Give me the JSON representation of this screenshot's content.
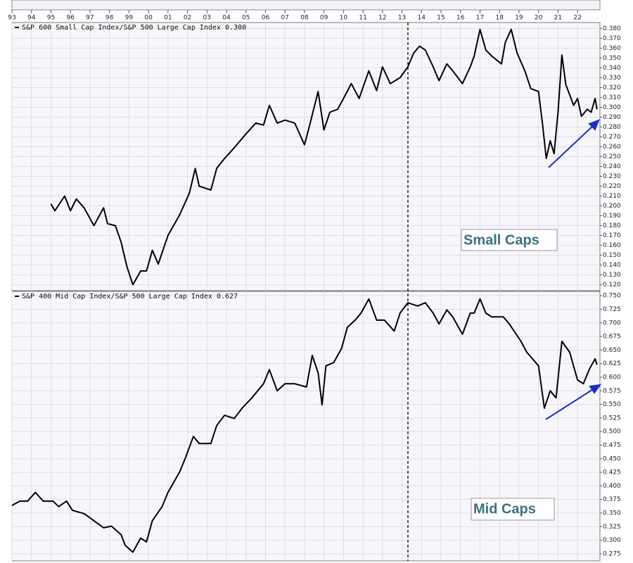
{
  "chart_data": [
    {
      "type": "line",
      "title": "S&P 600 Small Cap Index/S&P 500 Large Cap Index 0.300",
      "annotation": "Small Caps",
      "grid": true,
      "xlim": [
        1993,
        2023.15
      ],
      "xticks": [
        {
          "value": 1993,
          "label": "93"
        },
        {
          "value": 1994,
          "label": "94"
        },
        {
          "value": 1995,
          "label": "95"
        },
        {
          "value": 1996,
          "label": "96"
        },
        {
          "value": 1997,
          "label": "97"
        },
        {
          "value": 1998,
          "label": "98"
        },
        {
          "value": 1999,
          "label": "99"
        },
        {
          "value": 2000,
          "label": "00"
        },
        {
          "value": 2001,
          "label": "01"
        },
        {
          "value": 2002,
          "label": "02"
        },
        {
          "value": 2003,
          "label": "03"
        },
        {
          "value": 2004,
          "label": "04"
        },
        {
          "value": 2005,
          "label": "05"
        },
        {
          "value": 2006,
          "label": "06"
        },
        {
          "value": 2007,
          "label": "07"
        },
        {
          "value": 2008,
          "label": "08"
        },
        {
          "value": 2009,
          "label": "09"
        },
        {
          "value": 2010,
          "label": "10"
        },
        {
          "value": 2011,
          "label": "11"
        },
        {
          "value": 2012,
          "label": "12"
        },
        {
          "value": 2013,
          "label": "13"
        },
        {
          "value": 2014,
          "label": "14"
        },
        {
          "value": 2015,
          "label": "15"
        },
        {
          "value": 2016,
          "label": "16"
        },
        {
          "value": 2017,
          "label": "17"
        },
        {
          "value": 2018,
          "label": "18"
        },
        {
          "value": 2019,
          "label": "19"
        },
        {
          "value": 2020,
          "label": "20"
        },
        {
          "value": 2021,
          "label": "21"
        },
        {
          "value": 2022,
          "label": "22"
        }
      ],
      "ylim": [
        0.114,
        0.386
      ],
      "yticks": [
        {
          "value": 0.12,
          "label": "0.120"
        },
        {
          "value": 0.13,
          "label": "0.130"
        },
        {
          "value": 0.14,
          "label": "0.140"
        },
        {
          "value": 0.15,
          "label": "0.150"
        },
        {
          "value": 0.16,
          "label": "0.160"
        },
        {
          "value": 0.17,
          "label": "0.170"
        },
        {
          "value": 0.18,
          "label": "0.180"
        },
        {
          "value": 0.19,
          "label": "0.190"
        },
        {
          "value": 0.2,
          "label": "0.200"
        },
        {
          "value": 0.21,
          "label": "0.210"
        },
        {
          "value": 0.22,
          "label": "0.220"
        },
        {
          "value": 0.23,
          "label": "0.230"
        },
        {
          "value": 0.24,
          "label": "0.240"
        },
        {
          "value": 0.25,
          "label": "0.250"
        },
        {
          "value": 0.26,
          "label": "0.260"
        },
        {
          "value": 0.27,
          "label": "0.270"
        },
        {
          "value": 0.28,
          "label": "0.280"
        },
        {
          "value": 0.29,
          "label": "0.290"
        },
        {
          "value": 0.3,
          "label": "0.300"
        },
        {
          "value": 0.31,
          "label": "0.310"
        },
        {
          "value": 0.32,
          "label": "0.320"
        },
        {
          "value": 0.33,
          "label": "0.330"
        },
        {
          "value": 0.34,
          "label": "0.340"
        },
        {
          "value": 0.35,
          "label": "0.350"
        },
        {
          "value": 0.36,
          "label": "0.360"
        },
        {
          "value": 0.37,
          "label": "0.370"
        },
        {
          "value": 0.38,
          "label": "0.380"
        }
      ],
      "series": [
        {
          "color": "#000000",
          "x": [
            1995.0,
            1995.2,
            1995.7,
            1996.0,
            1996.3,
            1996.7,
            1997.2,
            1997.7,
            1997.9,
            1998.3,
            1998.6,
            1998.9,
            1999.2,
            1999.6,
            1999.9,
            2000.2,
            2000.5,
            2001.0,
            2001.6,
            2002.1,
            2002.4,
            2002.6,
            2003.2,
            2003.5,
            2003.9,
            2004.4,
            2005.0,
            2005.5,
            2005.9,
            2006.2,
            2006.6,
            2007.0,
            2007.5,
            2008.0,
            2008.2,
            2008.7,
            2009.0,
            2009.3,
            2009.7,
            2010.0,
            2010.4,
            2010.8,
            2011.3,
            2011.7,
            2012.0,
            2012.4,
            2012.9,
            2013.3,
            2013.6,
            2013.9,
            2014.2,
            2014.6,
            2014.9,
            2015.3,
            2015.6,
            2016.1,
            2016.5,
            2016.7,
            2017.0,
            2017.3,
            2017.6,
            2018.1,
            2018.3,
            2018.6,
            2018.9,
            2019.3,
            2019.6,
            2020.0,
            2020.2,
            2020.4,
            2020.6,
            2020.8,
            2021.0,
            2021.2,
            2021.4,
            2021.8,
            2022.0,
            2022.2,
            2022.5,
            2022.7,
            2022.9,
            2023.0
          ],
          "values": [
            0.202,
            0.195,
            0.21,
            0.195,
            0.207,
            0.198,
            0.18,
            0.198,
            0.182,
            0.18,
            0.163,
            0.138,
            0.12,
            0.134,
            0.134,
            0.155,
            0.141,
            0.17,
            0.191,
            0.213,
            0.238,
            0.22,
            0.216,
            0.238,
            0.248,
            0.259,
            0.273,
            0.284,
            0.282,
            0.302,
            0.284,
            0.287,
            0.284,
            0.262,
            0.277,
            0.316,
            0.277,
            0.295,
            0.298,
            0.309,
            0.324,
            0.309,
            0.337,
            0.317,
            0.341,
            0.324,
            0.33,
            0.341,
            0.355,
            0.362,
            0.358,
            0.341,
            0.327,
            0.344,
            0.337,
            0.324,
            0.341,
            0.352,
            0.379,
            0.358,
            0.352,
            0.344,
            0.366,
            0.379,
            0.355,
            0.337,
            0.319,
            0.316,
            0.284,
            0.248,
            0.266,
            0.253,
            0.295,
            0.353,
            0.323,
            0.302,
            0.309,
            0.291,
            0.298,
            0.295,
            0.309,
            0.298
          ]
        }
      ]
    },
    {
      "type": "line",
      "title": "S&P 400 Mid Cap Index/S&P 500 Large Cap Index 0.627",
      "annotation": "Mid Caps",
      "grid": true,
      "xlim": [
        1993,
        2023.15
      ],
      "ylim": [
        0.262,
        0.758
      ],
      "yticks": [
        {
          "value": 0.275,
          "label": "0.275"
        },
        {
          "value": 0.3,
          "label": "0.300"
        },
        {
          "value": 0.325,
          "label": "0.325"
        },
        {
          "value": 0.35,
          "label": "0.350"
        },
        {
          "value": 0.375,
          "label": "0.375"
        },
        {
          "value": 0.4,
          "label": "0.400"
        },
        {
          "value": 0.425,
          "label": "0.425"
        },
        {
          "value": 0.45,
          "label": "0.450"
        },
        {
          "value": 0.475,
          "label": "0.475"
        },
        {
          "value": 0.5,
          "label": "0.500"
        },
        {
          "value": 0.525,
          "label": "0.525"
        },
        {
          "value": 0.55,
          "label": "0.550"
        },
        {
          "value": 0.575,
          "label": "0.575"
        },
        {
          "value": 0.6,
          "label": "0.600"
        },
        {
          "value": 0.625,
          "label": "0.625"
        },
        {
          "value": 0.65,
          "label": "0.650"
        },
        {
          "value": 0.675,
          "label": "0.675"
        },
        {
          "value": 0.7,
          "label": "0.700"
        },
        {
          "value": 0.725,
          "label": "0.725"
        },
        {
          "value": 0.75,
          "label": "0.750"
        }
      ],
      "series": [
        {
          "color": "#000000",
          "x": [
            1993.0,
            1993.4,
            1993.8,
            1994.2,
            1994.6,
            1995.1,
            1995.4,
            1995.8,
            1996.1,
            1996.7,
            1997.2,
            1997.7,
            1998.1,
            1998.6,
            1998.8,
            1999.2,
            1999.6,
            1999.9,
            2000.2,
            2000.7,
            2001.0,
            2001.6,
            2001.9,
            2002.3,
            2002.6,
            2003.2,
            2003.5,
            2003.9,
            2004.4,
            2004.8,
            2005.3,
            2005.9,
            2006.2,
            2006.6,
            2007.0,
            2007.5,
            2008.1,
            2008.4,
            2008.7,
            2008.9,
            2009.1,
            2009.5,
            2009.9,
            2010.2,
            2010.6,
            2010.9,
            2011.3,
            2011.7,
            2012.1,
            2012.6,
            2012.9,
            2013.3,
            2013.8,
            2014.2,
            2014.6,
            2014.9,
            2015.3,
            2015.6,
            2016.1,
            2016.5,
            2016.7,
            2017.0,
            2017.3,
            2017.6,
            2018.2,
            2018.5,
            2019.1,
            2019.4,
            2020.0,
            2020.2,
            2020.3,
            2020.6,
            2020.9,
            2021.2,
            2021.6,
            2022.0,
            2022.3,
            2022.6,
            2022.9,
            2023.0
          ],
          "values": [
            0.364,
            0.372,
            0.372,
            0.388,
            0.372,
            0.372,
            0.362,
            0.372,
            0.355,
            0.349,
            0.336,
            0.323,
            0.326,
            0.31,
            0.291,
            0.278,
            0.304,
            0.297,
            0.336,
            0.362,
            0.388,
            0.426,
            0.452,
            0.491,
            0.478,
            0.478,
            0.511,
            0.53,
            0.524,
            0.543,
            0.562,
            0.588,
            0.614,
            0.575,
            0.588,
            0.588,
            0.582,
            0.64,
            0.608,
            0.549,
            0.621,
            0.627,
            0.653,
            0.692,
            0.705,
            0.718,
            0.744,
            0.705,
            0.705,
            0.685,
            0.718,
            0.737,
            0.731,
            0.737,
            0.718,
            0.698,
            0.724,
            0.711,
            0.679,
            0.718,
            0.718,
            0.744,
            0.718,
            0.711,
            0.711,
            0.698,
            0.666,
            0.646,
            0.621,
            0.569,
            0.543,
            0.575,
            0.562,
            0.666,
            0.646,
            0.595,
            0.588,
            0.614,
            0.634,
            0.623
          ]
        }
      ]
    }
  ]
}
